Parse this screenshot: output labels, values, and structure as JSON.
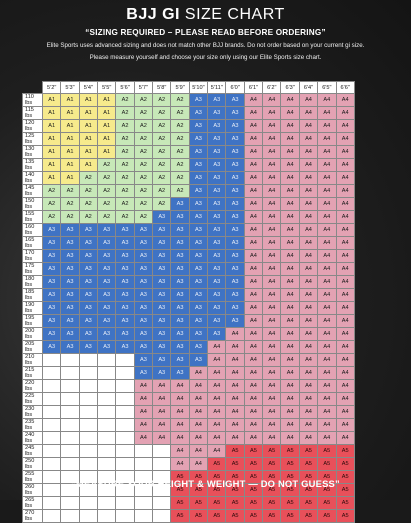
{
  "header": {
    "title_bold": "BJJ GI",
    "title_rest": "SIZE CHART",
    "subtitle": "“SIZING REQUIRED – PLEASE READ BEFORE ORDERING”",
    "note1": "Elite Sports uses advanced sizing and does not match other BJJ brands. Do not order based on your current gi size.",
    "note2": "Please measure yourself and choose your size only using our Elite Sports size chart."
  },
  "chart_data": {
    "type": "table",
    "heights": [
      "5'2\"",
      "5'3\"",
      "5'4\"",
      "5'5\"",
      "5'6\"",
      "5'7\"",
      "5'8\"",
      "5'9\"",
      "5'10\"",
      "5'11\"",
      "6'0\"",
      "6'1\"",
      "6'2\"",
      "6'3\"",
      "6'4\"",
      "6'5\"",
      "6'6\""
    ],
    "rows": [
      {
        "weight": "110 lbs",
        "sizes": [
          "A1",
          "A1",
          "A1",
          "A1",
          "A2",
          "A2",
          "A2",
          "A2",
          "A3",
          "A3",
          "A3",
          "A4",
          "A4",
          "A4",
          "A4",
          "A4",
          "A4"
        ]
      },
      {
        "weight": "115 lbs",
        "sizes": [
          "A1",
          "A1",
          "A1",
          "A1",
          "A2",
          "A2",
          "A2",
          "A2",
          "A3",
          "A3",
          "A3",
          "A4",
          "A4",
          "A4",
          "A4",
          "A4",
          "A4"
        ]
      },
      {
        "weight": "120 lbs",
        "sizes": [
          "A1",
          "A1",
          "A1",
          "A1",
          "A2",
          "A2",
          "A2",
          "A2",
          "A3",
          "A3",
          "A3",
          "A4",
          "A4",
          "A4",
          "A4",
          "A4",
          "A4"
        ]
      },
      {
        "weight": "125 lbs",
        "sizes": [
          "A1",
          "A1",
          "A1",
          "A1",
          "A2",
          "A2",
          "A2",
          "A2",
          "A3",
          "A3",
          "A3",
          "A4",
          "A4",
          "A4",
          "A4",
          "A4",
          "A4"
        ]
      },
      {
        "weight": "130 lbs",
        "sizes": [
          "A1",
          "A1",
          "A1",
          "A1",
          "A2",
          "A2",
          "A2",
          "A2",
          "A3",
          "A3",
          "A3",
          "A4",
          "A4",
          "A4",
          "A4",
          "A4",
          "A4"
        ]
      },
      {
        "weight": "135 lbs",
        "sizes": [
          "A1",
          "A1",
          "A1",
          "A2",
          "A2",
          "A2",
          "A2",
          "A2",
          "A3",
          "A3",
          "A3",
          "A4",
          "A4",
          "A4",
          "A4",
          "A4",
          "A4"
        ]
      },
      {
        "weight": "140 lbs",
        "sizes": [
          "A1",
          "A1",
          "A2",
          "A2",
          "A2",
          "A2",
          "A2",
          "A2",
          "A3",
          "A3",
          "A3",
          "A4",
          "A4",
          "A4",
          "A4",
          "A4",
          "A4"
        ]
      },
      {
        "weight": "145 lbs",
        "sizes": [
          "A2",
          "A2",
          "A2",
          "A2",
          "A2",
          "A2",
          "A2",
          "A2",
          "A3",
          "A3",
          "A3",
          "A4",
          "A4",
          "A4",
          "A4",
          "A4",
          "A4"
        ]
      },
      {
        "weight": "150 lbs",
        "sizes": [
          "A2",
          "A2",
          "A2",
          "A2",
          "A2",
          "A2",
          "A2",
          "A3",
          "A3",
          "A3",
          "A3",
          "A4",
          "A4",
          "A4",
          "A4",
          "A4",
          "A4"
        ]
      },
      {
        "weight": "155 lbs",
        "sizes": [
          "A2",
          "A2",
          "A2",
          "A2",
          "A2",
          "A2",
          "A3",
          "A3",
          "A3",
          "A3",
          "A3",
          "A4",
          "A4",
          "A4",
          "A4",
          "A4",
          "A4"
        ]
      },
      {
        "weight": "160 lbs",
        "sizes": [
          "A3",
          "A3",
          "A3",
          "A3",
          "A3",
          "A3",
          "A3",
          "A3",
          "A3",
          "A3",
          "A3",
          "A4",
          "A4",
          "A4",
          "A4",
          "A4",
          "A4"
        ]
      },
      {
        "weight": "165 lbs",
        "sizes": [
          "A3",
          "A3",
          "A3",
          "A3",
          "A3",
          "A3",
          "A3",
          "A3",
          "A3",
          "A3",
          "A3",
          "A4",
          "A4",
          "A4",
          "A4",
          "A4",
          "A4"
        ]
      },
      {
        "weight": "170 lbs",
        "sizes": [
          "A3",
          "A3",
          "A3",
          "A3",
          "A3",
          "A3",
          "A3",
          "A3",
          "A3",
          "A3",
          "A3",
          "A4",
          "A4",
          "A4",
          "A4",
          "A4",
          "A4"
        ]
      },
      {
        "weight": "175 lbs",
        "sizes": [
          "A3",
          "A3",
          "A3",
          "A3",
          "A3",
          "A3",
          "A3",
          "A3",
          "A3",
          "A3",
          "A3",
          "A4",
          "A4",
          "A4",
          "A4",
          "A4",
          "A4"
        ]
      },
      {
        "weight": "180 lbs",
        "sizes": [
          "A3",
          "A3",
          "A3",
          "A3",
          "A3",
          "A3",
          "A3",
          "A3",
          "A3",
          "A3",
          "A3",
          "A4",
          "A4",
          "A4",
          "A4",
          "A4",
          "A4"
        ]
      },
      {
        "weight": "185 lbs",
        "sizes": [
          "A3",
          "A3",
          "A3",
          "A3",
          "A3",
          "A3",
          "A3",
          "A3",
          "A3",
          "A3",
          "A3",
          "A4",
          "A4",
          "A4",
          "A4",
          "A4",
          "A4"
        ]
      },
      {
        "weight": "190 lbs",
        "sizes": [
          "A3",
          "A3",
          "A3",
          "A3",
          "A3",
          "A3",
          "A3",
          "A3",
          "A3",
          "A3",
          "A3",
          "A4",
          "A4",
          "A4",
          "A4",
          "A4",
          "A4"
        ]
      },
      {
        "weight": "195 lbs",
        "sizes": [
          "A3",
          "A3",
          "A3",
          "A3",
          "A3",
          "A3",
          "A3",
          "A3",
          "A3",
          "A3",
          "A3",
          "A4",
          "A4",
          "A4",
          "A4",
          "A4",
          "A4"
        ]
      },
      {
        "weight": "200 lbs",
        "sizes": [
          "A3",
          "A3",
          "A3",
          "A3",
          "A3",
          "A3",
          "A3",
          "A3",
          "A3",
          "A3",
          "A4",
          "A4",
          "A4",
          "A4",
          "A4",
          "A4",
          "A4"
        ]
      },
      {
        "weight": "205 lbs",
        "sizes": [
          "A3",
          "A3",
          "A3",
          "A3",
          "A3",
          "A3",
          "A3",
          "A3",
          "A3",
          "A4",
          "A4",
          "A4",
          "A4",
          "A4",
          "A4",
          "A4",
          "A4"
        ]
      },
      {
        "weight": "210 lbs",
        "sizes": [
          "",
          "",
          "",
          "",
          "",
          "A3",
          "A3",
          "A3",
          "A3",
          "A4",
          "A4",
          "A4",
          "A4",
          "A4",
          "A4",
          "A4",
          "A4"
        ]
      },
      {
        "weight": "215 lbs",
        "sizes": [
          "",
          "",
          "",
          "",
          "",
          "A3",
          "A3",
          "A3",
          "A4",
          "A4",
          "A4",
          "A4",
          "A4",
          "A4",
          "A4",
          "A4",
          "A4"
        ]
      },
      {
        "weight": "220 lbs",
        "sizes": [
          "",
          "",
          "",
          "",
          "",
          "A4",
          "A4",
          "A4",
          "A4",
          "A4",
          "A4",
          "A4",
          "A4",
          "A4",
          "A4",
          "A4",
          "A4"
        ]
      },
      {
        "weight": "225 lbs",
        "sizes": [
          "",
          "",
          "",
          "",
          "",
          "A4",
          "A4",
          "A4",
          "A4",
          "A4",
          "A4",
          "A4",
          "A4",
          "A4",
          "A4",
          "A4",
          "A4"
        ]
      },
      {
        "weight": "230 lbs",
        "sizes": [
          "",
          "",
          "",
          "",
          "",
          "A4",
          "A4",
          "A4",
          "A4",
          "A4",
          "A4",
          "A4",
          "A4",
          "A4",
          "A4",
          "A4",
          "A4"
        ]
      },
      {
        "weight": "235 lbs",
        "sizes": [
          "",
          "",
          "",
          "",
          "",
          "A4",
          "A4",
          "A4",
          "A4",
          "A4",
          "A4",
          "A4",
          "A4",
          "A4",
          "A4",
          "A4",
          "A4"
        ]
      },
      {
        "weight": "240 lbs",
        "sizes": [
          "",
          "",
          "",
          "",
          "",
          "A4",
          "A4",
          "A4",
          "A4",
          "A4",
          "A4",
          "A4",
          "A4",
          "A4",
          "A4",
          "A4",
          "A4"
        ]
      },
      {
        "weight": "245 lbs",
        "sizes": [
          "",
          "",
          "",
          "",
          "",
          "",
          "",
          "A4",
          "A4",
          "A4",
          "A5",
          "A5",
          "A5",
          "A5",
          "A5",
          "A5",
          "A5"
        ]
      },
      {
        "weight": "250 lbs",
        "sizes": [
          "",
          "",
          "",
          "",
          "",
          "",
          "",
          "A4",
          "A4",
          "A5",
          "A5",
          "A5",
          "A5",
          "A5",
          "A5",
          "A5",
          "A5"
        ]
      },
      {
        "weight": "255 lbs",
        "sizes": [
          "",
          "",
          "",
          "",
          "",
          "",
          "",
          "A5",
          "A5",
          "A5",
          "A5",
          "A5",
          "A5",
          "A5",
          "A5",
          "A5",
          "A5"
        ]
      },
      {
        "weight": "260 lbs",
        "sizes": [
          "",
          "",
          "",
          "",
          "",
          "",
          "",
          "A5",
          "A5",
          "A5",
          "A5",
          "A5",
          "A5",
          "A5",
          "A5",
          "A5",
          "A5"
        ]
      },
      {
        "weight": "265 lbs",
        "sizes": [
          "",
          "",
          "",
          "",
          "",
          "",
          "",
          "A5",
          "A5",
          "A5",
          "A5",
          "A5",
          "A5",
          "A5",
          "A5",
          "A5",
          "A5"
        ]
      },
      {
        "weight": "270 lbs",
        "sizes": [
          "",
          "",
          "",
          "",
          "",
          "",
          "",
          "A5",
          "A5",
          "A5",
          "A5",
          "A5",
          "A5",
          "A5",
          "A5",
          "A5",
          "A5"
        ]
      }
    ]
  },
  "footer": {
    "text": "“MEASURE YOUR HEIGHT & WEIGHT — DO NOT GUESS”"
  }
}
